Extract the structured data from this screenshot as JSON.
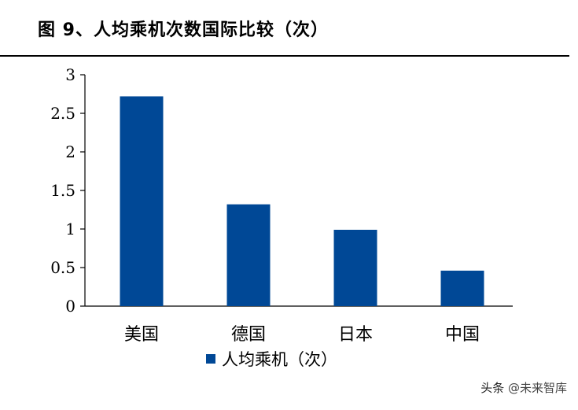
{
  "figure": {
    "title": "图 9、人均乘机次数国际比较（次）",
    "source_text": "",
    "watermark": {
      "prefix": "头条",
      "brand": "@未来智库"
    }
  },
  "chart_data": {
    "type": "bar",
    "categories": [
      "美国",
      "德国",
      "日本",
      "中国"
    ],
    "series": [
      {
        "name": "人均乘机（次）",
        "values": [
          2.72,
          1.32,
          0.99,
          0.46
        ],
        "color": "#004896"
      }
    ],
    "y_ticks": [
      "0",
      "0.5",
      "1",
      "1.5",
      "2",
      "2.5",
      "3"
    ],
    "ylim": [
      0,
      3
    ],
    "grid": false,
    "legend_position": "bottom-center"
  }
}
